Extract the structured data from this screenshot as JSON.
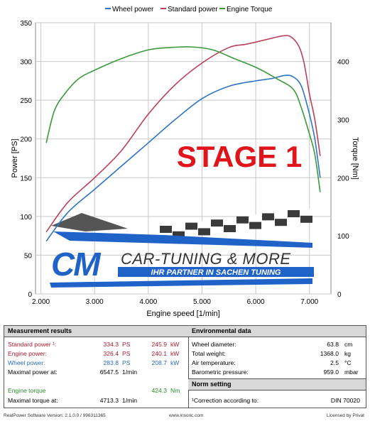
{
  "chart_data": {
    "type": "line",
    "title": "",
    "xlabel": "Engine speed [1/min]",
    "ylabel": "Power [PS]",
    "y2label": "Torque [Nm]",
    "xlim": [
      1900,
      7400
    ],
    "ylim": [
      0,
      350
    ],
    "y2lim": [
      0,
      466.7
    ],
    "x_ticks": [
      "2.000",
      "3.000",
      "4.000",
      "5.000",
      "6.000",
      "7.000"
    ],
    "y_ticks": [
      "0",
      "50",
      "100",
      "150",
      "200",
      "250",
      "300",
      "350"
    ],
    "y2_ticks": [
      "0",
      "100",
      "200",
      "300",
      "400"
    ],
    "grid": true,
    "legend_position": "top",
    "legend": [
      "Wheel power",
      "Standard power",
      "Engine Torque"
    ],
    "series": [
      {
        "name": "Wheel power",
        "axis": "left",
        "color": "#2e74c4",
        "x": [
          2100,
          2500,
          3000,
          3500,
          4000,
          4500,
          5000,
          5500,
          6000,
          6300,
          6550,
          6700,
          6850,
          7000,
          7100,
          7200
        ],
        "values": [
          68,
          105,
          135,
          165,
          195,
          225,
          252,
          268,
          275,
          278,
          282,
          280,
          268,
          232,
          200,
          150
        ]
      },
      {
        "name": "Standard power",
        "axis": "left",
        "color": "#b8405a",
        "x": [
          2100,
          2500,
          3000,
          3500,
          4000,
          4500,
          5000,
          5500,
          5800,
          6000,
          6300,
          6500,
          6650,
          6800,
          6900,
          7000,
          7100,
          7200
        ],
        "values": [
          80,
          118,
          150,
          185,
          232,
          270,
          298,
          318,
          322,
          325,
          330,
          333,
          332,
          320,
          298,
          258,
          225,
          178
        ]
      },
      {
        "name": "Engine Torque",
        "axis": "right",
        "color": "#3a9a3a",
        "x": [
          2100,
          2250,
          2450,
          2700,
          3000,
          3500,
          4000,
          4400,
          4800,
          5200,
          5600,
          6000,
          6400,
          6700,
          6850,
          7000,
          7100,
          7200
        ],
        "values": [
          260,
          315,
          345,
          370,
          385,
          405,
          420,
          424,
          425,
          420,
          405,
          390,
          370,
          352,
          320,
          275,
          240,
          175
        ]
      }
    ],
    "watermark": {
      "stage_text": "STAGE 1",
      "logo_letters": "CM",
      "logo_name": "CAR-TUNING & MORE",
      "logo_tagline": "IHR PARTNER IN SACHEN TUNING"
    }
  },
  "measurement": {
    "title": "Measurement results",
    "standard_power_label": "Standard power ¹:",
    "standard_power_ps": "334.3",
    "standard_power_kw": "245.9",
    "engine_power_label": "Engine power:",
    "engine_power_ps": "326.4",
    "engine_power_kw": "240.1",
    "wheel_power_label": "Wheel power:",
    "wheel_power_ps": "283.8",
    "wheel_power_kw": "208.7",
    "max_power_label": "Maximal power at:",
    "max_power_rpm": "6547.5",
    "engine_torque_label": "Engine torque",
    "engine_torque_nm": "424.3",
    "max_torque_label": "Maximal torque at:",
    "max_torque_rpm": "4713.3",
    "unit_ps": "PS",
    "unit_kw": "kW",
    "unit_rpm": "1/min",
    "unit_nm": "Nm"
  },
  "environment": {
    "title": "Environmental data",
    "wheel_diameter_label": "Wheel diameter:",
    "wheel_diameter_value": "63.8",
    "wheel_diameter_unit": "cm",
    "total_weight_label": "Total weight:",
    "total_weight_value": "1368.0",
    "total_weight_unit": "kg",
    "air_temp_label": "Air temperature:",
    "air_temp_value": "2.5",
    "air_temp_unit": "°C",
    "baro_label": "Barometric pressure:",
    "baro_value": "959.0",
    "baro_unit": "mbar"
  },
  "norm": {
    "title": "Norm setting",
    "correction_label": "¹Correction according to:",
    "correction_value": "DIN 70020"
  },
  "footer": {
    "version": "RealPower Software Version: 2.1.0.0 / 996311365",
    "website": "www.insoric.com",
    "license": "Licensed by Privat"
  }
}
